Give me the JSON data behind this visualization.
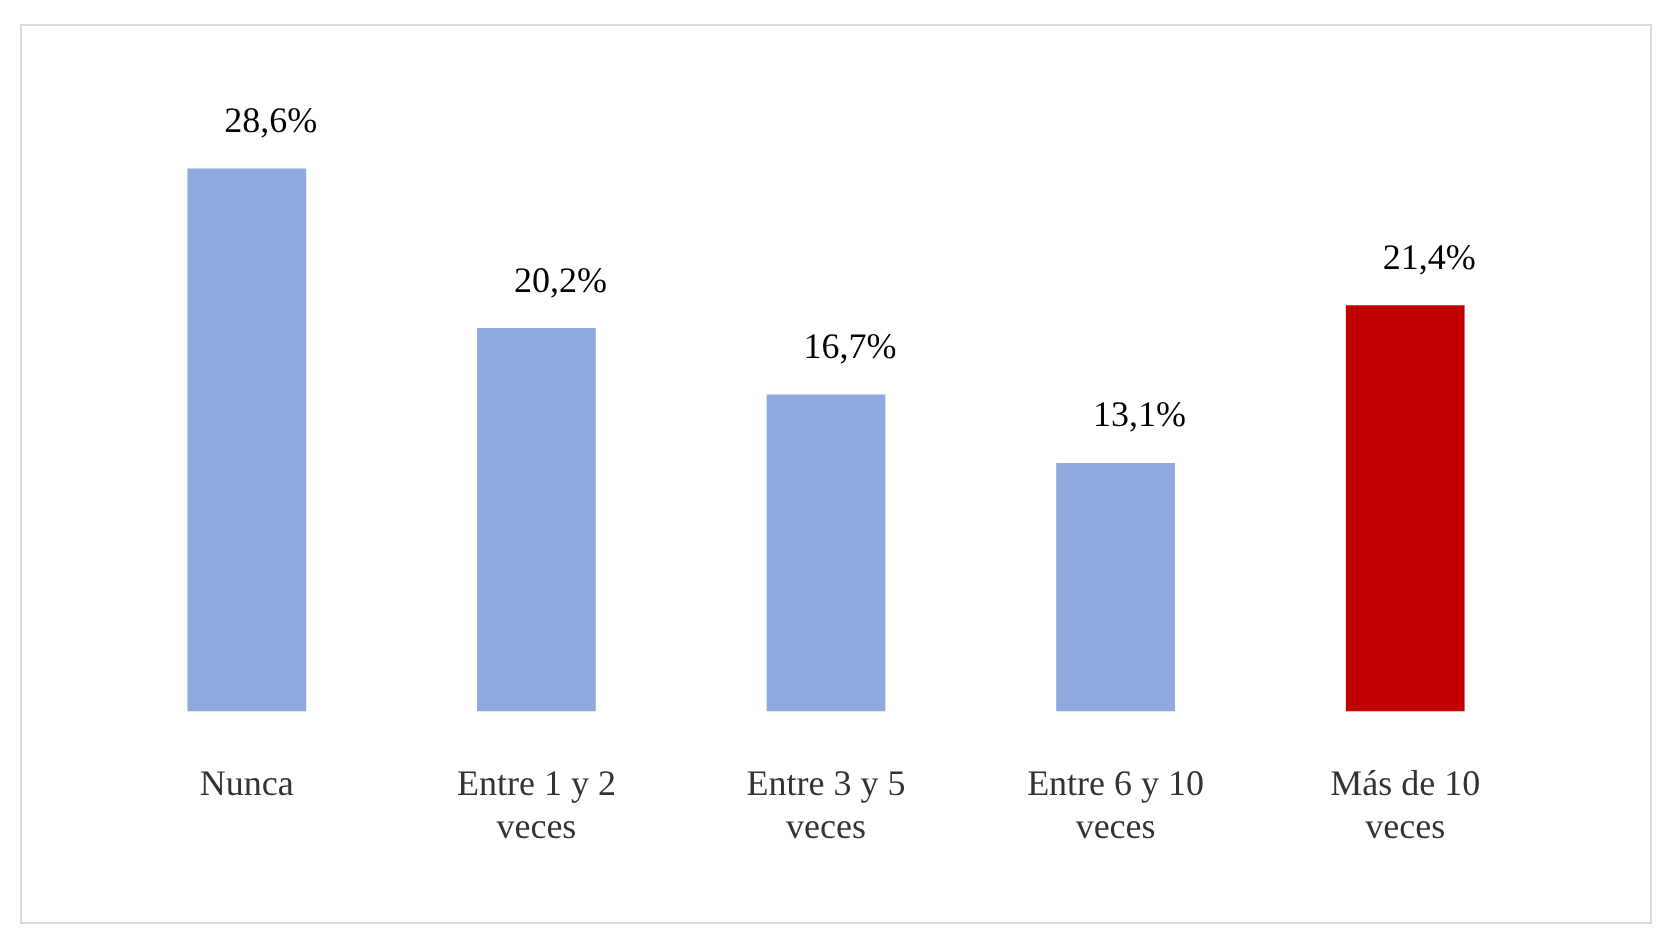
{
  "chart_data": {
    "type": "bar",
    "categories": [
      "Nunca",
      "Entre 1 y 2 veces",
      "Entre 3 y 5 veces",
      "Entre 6 y 10 veces",
      "Más de 10 veces"
    ],
    "values": [
      28.6,
      20.2,
      16.7,
      13.1,
      21.4
    ],
    "colors": [
      "#8faadc",
      "#8faadc",
      "#8faadc",
      "#8faadc",
      "#c00000"
    ],
    "value_labels": [
      "28,6%",
      "20,2%",
      "16,7%",
      "13,1%",
      "21,4%"
    ],
    "legend": false,
    "grid": false
  }
}
